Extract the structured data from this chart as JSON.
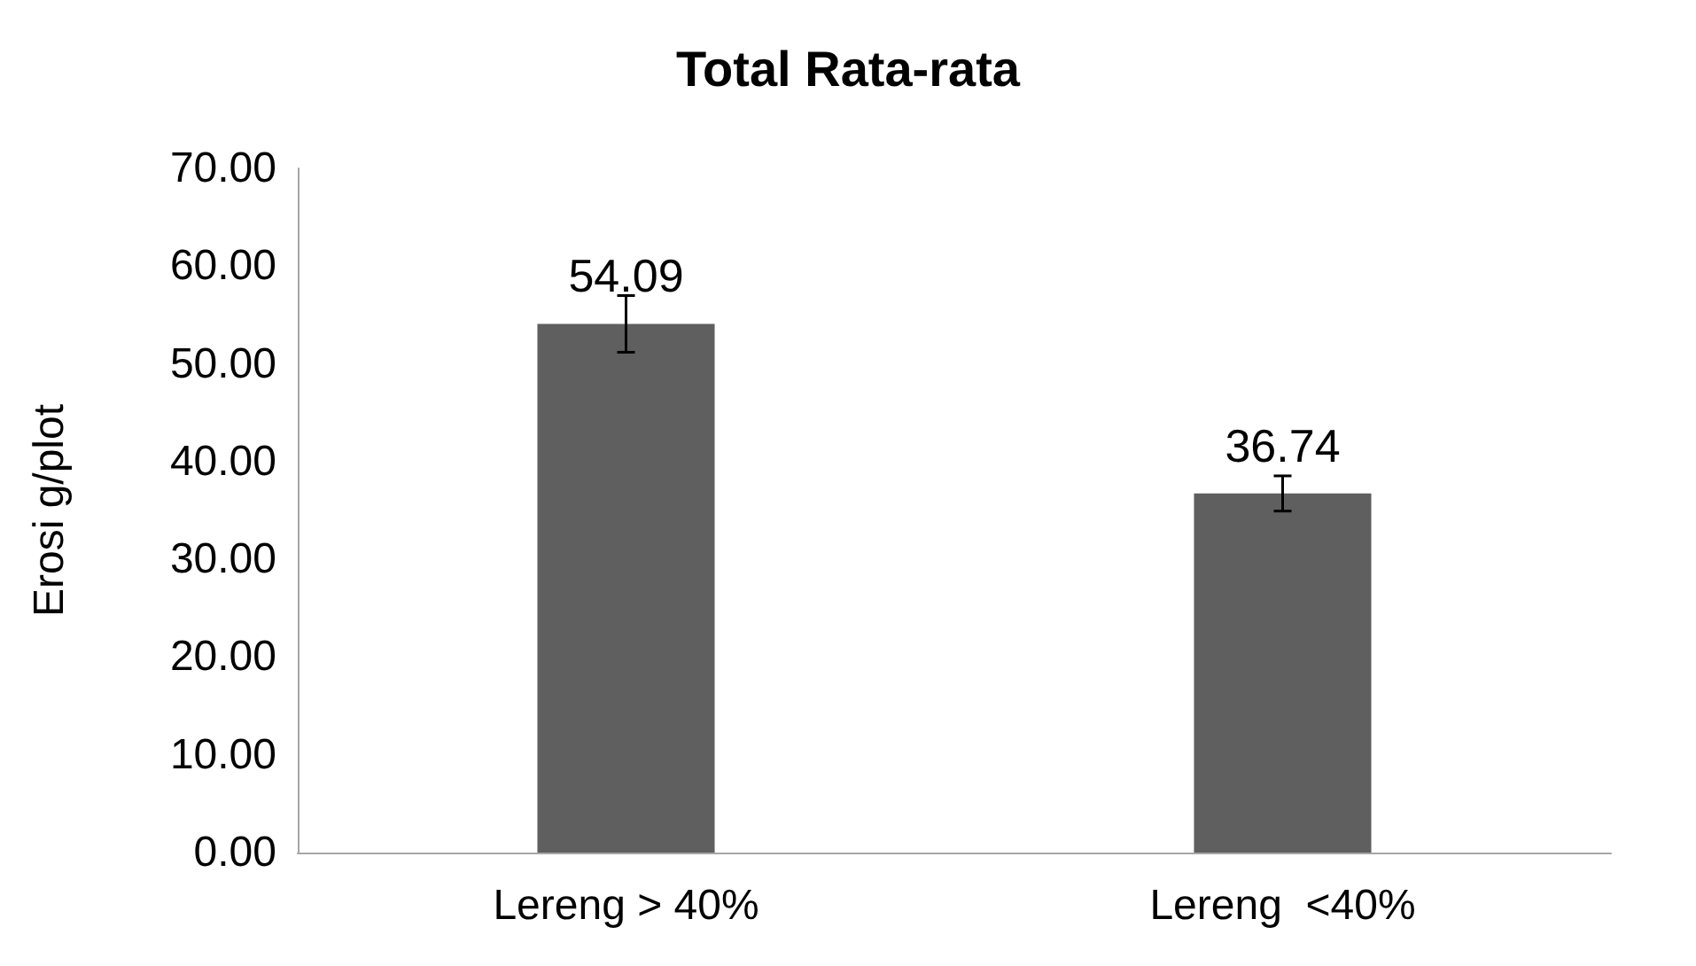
{
  "chart_data": {
    "type": "bar",
    "title": "Total Rata-rata",
    "ylabel": "Erosi g/plot",
    "categories": [
      "Lereng > 40%",
      "Lereng  <40%"
    ],
    "values": [
      54.09,
      36.74
    ],
    "color": "#5f5f5f",
    "errors": [
      2.9,
      1.8
    ],
    "data_labels": true,
    "ylim": [
      0,
      70
    ],
    "yticks": [
      {
        "value": 0,
        "label": "0.00"
      },
      {
        "value": 10,
        "label": "10.00"
      },
      {
        "value": 20,
        "label": "20.00"
      },
      {
        "value": 30,
        "label": "30.00"
      },
      {
        "value": 40,
        "label": "40.00"
      },
      {
        "value": 50,
        "label": "50.00"
      },
      {
        "value": 60,
        "label": "60.00"
      },
      {
        "value": 70,
        "label": "70.00"
      }
    ],
    "grid": false
  }
}
